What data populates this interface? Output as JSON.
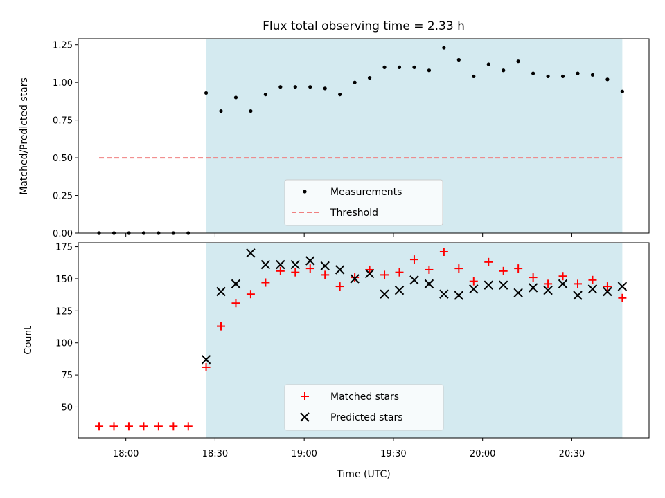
{
  "title": "Flux total observing time = 2.33 h",
  "top_panel": {
    "ylabel": "Matched/Predicted stars",
    "ylim": [
      0,
      1.29
    ],
    "yticks": [
      "0.00",
      "0.25",
      "0.50",
      "0.75",
      "1.00",
      "1.25"
    ],
    "legend": {
      "placement": "lower center",
      "measurements_label": "Measurements",
      "threshold_label": "Threshold"
    }
  },
  "bottom_panel": {
    "ylabel": "Count",
    "ylim": [
      26,
      178
    ],
    "yticks": [
      "50",
      "75",
      "100",
      "125",
      "150",
      "175"
    ],
    "legend": {
      "placement": "lower center",
      "matched_label": "Matched stars",
      "predicted_label": "Predicted stars"
    }
  },
  "xlabel": "Time (UTC)",
  "xticks": [
    "18:00",
    "18:30",
    "19:00",
    "19:30",
    "20:00",
    "20:30"
  ],
  "colors": {
    "shade": "#d4eaf0",
    "threshold": "#f08080",
    "matched": "#ff0000",
    "predicted": "#000000",
    "measurements": "#000000"
  },
  "chart_data": [
    {
      "type": "scatter",
      "panel": "top",
      "title": "Flux total observing time = 2.33 h",
      "xlabel": "",
      "ylabel": "Matched/Predicted stars",
      "xlim": [
        "17:44",
        "20:56"
      ],
      "ylim": [
        0,
        1.29
      ],
      "shaded_interval": [
        "18:27",
        "20:47"
      ],
      "threshold": 0.5,
      "threshold_range": [
        "17:51",
        "20:47"
      ],
      "series": [
        {
          "name": "Measurements",
          "x": [
            "17:51",
            "17:56",
            "18:01",
            "18:06",
            "18:11",
            "18:16",
            "18:21",
            "18:27",
            "18:32",
            "18:37",
            "18:42",
            "18:47",
            "18:52",
            "18:57",
            "19:02",
            "19:07",
            "19:12",
            "19:17",
            "19:22",
            "19:27",
            "19:32",
            "19:37",
            "19:42",
            "19:47",
            "19:52",
            "19:57",
            "20:02",
            "20:07",
            "20:12",
            "20:17",
            "20:22",
            "20:27",
            "20:32",
            "20:37",
            "20:42",
            "20:47"
          ],
          "y": [
            0,
            0,
            0,
            0,
            0,
            0,
            0,
            0.93,
            0.81,
            0.9,
            0.81,
            0.92,
            0.97,
            0.97,
            0.97,
            0.96,
            0.92,
            1.0,
            1.03,
            1.1,
            1.1,
            1.1,
            1.08,
            1.23,
            1.15,
            1.04,
            1.12,
            1.08,
            1.14,
            1.06,
            1.04,
            1.04,
            1.06,
            1.05,
            1.02,
            0.94
          ]
        }
      ],
      "legend": "lower center",
      "grid": false
    },
    {
      "type": "scatter",
      "panel": "bottom",
      "xlabel": "Time (UTC)",
      "ylabel": "Count",
      "xlim": [
        "17:44",
        "20:56"
      ],
      "ylim": [
        26,
        178
      ],
      "shaded_interval": [
        "18:27",
        "20:47"
      ],
      "series": [
        {
          "name": "Matched stars",
          "marker": "+",
          "x": [
            "17:51",
            "17:56",
            "18:01",
            "18:06",
            "18:11",
            "18:16",
            "18:21",
            "18:27",
            "18:32",
            "18:37",
            "18:42",
            "18:47",
            "18:52",
            "18:57",
            "19:02",
            "19:07",
            "19:12",
            "19:17",
            "19:22",
            "19:27",
            "19:32",
            "19:37",
            "19:42",
            "19:47",
            "19:52",
            "19:57",
            "20:02",
            "20:07",
            "20:12",
            "20:17",
            "20:22",
            "20:27",
            "20:32",
            "20:37",
            "20:42",
            "20:47"
          ],
          "y": [
            35,
            35,
            35,
            35,
            35,
            35,
            35,
            81,
            113,
            131,
            138,
            147,
            156,
            155,
            158,
            153,
            144,
            151,
            157,
            153,
            155,
            165,
            157,
            171,
            158,
            148,
            163,
            156,
            158,
            151,
            146,
            152,
            146,
            149,
            144,
            135
          ]
        },
        {
          "name": "Predicted stars",
          "marker": "x",
          "x": [
            "18:27",
            "18:32",
            "18:37",
            "18:42",
            "18:47",
            "18:52",
            "18:57",
            "19:02",
            "19:07",
            "19:12",
            "19:17",
            "19:22",
            "19:27",
            "19:32",
            "19:37",
            "19:42",
            "19:47",
            "19:52",
            "19:57",
            "20:02",
            "20:07",
            "20:12",
            "20:17",
            "20:22",
            "20:27",
            "20:32",
            "20:37",
            "20:42",
            "20:47"
          ],
          "y": [
            87,
            140,
            146,
            170,
            161,
            161,
            161,
            164,
            160,
            157,
            150,
            154,
            138,
            141,
            149,
            146,
            138,
            137,
            142,
            145,
            145,
            139,
            143,
            141,
            146,
            137,
            142,
            140,
            144
          ]
        }
      ],
      "legend": "lower center",
      "grid": false
    }
  ]
}
